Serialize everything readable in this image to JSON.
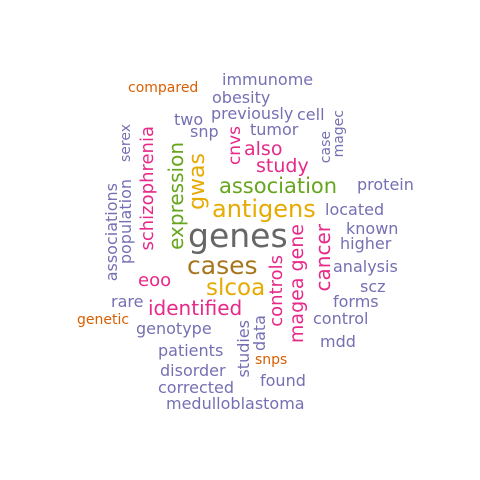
{
  "colors": {
    "purple": "#7570b3",
    "magenta": "#e7298a",
    "green": "#66a61e",
    "gold": "#e6ab02",
    "brown": "#a6761d",
    "gray": "#666666",
    "orange": "#d95f02"
  },
  "words": [
    {
      "text": "genes",
      "color": "gray"
    },
    {
      "text": "cases",
      "color": "brown"
    },
    {
      "text": "antigens",
      "color": "gold"
    },
    {
      "text": "slcoa",
      "color": "gold"
    },
    {
      "text": "association",
      "color": "green"
    },
    {
      "text": "identified",
      "color": "magenta"
    },
    {
      "text": "expression",
      "color": "green"
    },
    {
      "text": "gwas",
      "color": "gold"
    },
    {
      "text": "cancer",
      "color": "magenta"
    },
    {
      "text": "magea gene",
      "color": "magenta"
    },
    {
      "text": "controls",
      "color": "magenta"
    },
    {
      "text": "schizophrenia",
      "color": "magenta"
    },
    {
      "text": "study",
      "color": "magenta"
    },
    {
      "text": "also",
      "color": "magenta"
    },
    {
      "text": "eoo",
      "color": "magenta"
    },
    {
      "text": "cnvs",
      "color": "magenta"
    },
    {
      "text": "immunome",
      "color": "purple"
    },
    {
      "text": "obesity",
      "color": "purple"
    },
    {
      "text": "previously",
      "color": "purple"
    },
    {
      "text": "cell",
      "color": "purple"
    },
    {
      "text": "two",
      "color": "purple"
    },
    {
      "text": "snp",
      "color": "purple"
    },
    {
      "text": "tumor",
      "color": "purple"
    },
    {
      "text": "case",
      "color": "purple"
    },
    {
      "text": "magec",
      "color": "purple"
    },
    {
      "text": "protein",
      "color": "purple"
    },
    {
      "text": "located",
      "color": "purple"
    },
    {
      "text": "known",
      "color": "purple"
    },
    {
      "text": "higher",
      "color": "purple"
    },
    {
      "text": "analysis",
      "color": "purple"
    },
    {
      "text": "scz",
      "color": "purple"
    },
    {
      "text": "forms",
      "color": "purple"
    },
    {
      "text": "control",
      "color": "purple"
    },
    {
      "text": "mdd",
      "color": "purple"
    },
    {
      "text": "serex",
      "color": "purple"
    },
    {
      "text": "population",
      "color": "purple"
    },
    {
      "text": "associations",
      "color": "purple"
    },
    {
      "text": "rare",
      "color": "purple"
    },
    {
      "text": "genotype",
      "color": "purple"
    },
    {
      "text": "patients",
      "color": "purple"
    },
    {
      "text": "disorder",
      "color": "purple"
    },
    {
      "text": "corrected",
      "color": "purple"
    },
    {
      "text": "medulloblastoma",
      "color": "purple"
    },
    {
      "text": "found",
      "color": "purple"
    },
    {
      "text": "studies",
      "color": "purple"
    },
    {
      "text": "data",
      "color": "purple"
    },
    {
      "text": "compared",
      "color": "orange"
    },
    {
      "text": "genetic",
      "color": "orange"
    },
    {
      "text": "snps",
      "color": "orange"
    }
  ]
}
